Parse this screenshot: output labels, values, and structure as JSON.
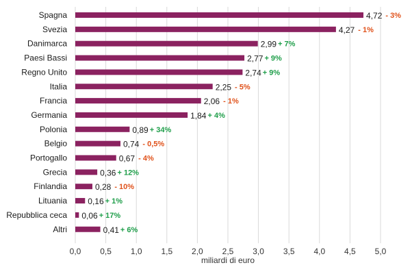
{
  "chart_data": {
    "type": "bar",
    "orientation": "horizontal",
    "xlabel": "miliardi di euro",
    "xlim": [
      0,
      5.0
    ],
    "xticks": [
      0,
      0.5,
      1.0,
      1.5,
      2.0,
      2.5,
      3.0,
      3.5,
      4.0,
      4.5,
      5.0
    ],
    "xtick_labels": [
      "0,0",
      "0,5",
      "1,0",
      "1,5",
      "2,0",
      "2,5",
      "3,0",
      "3,5",
      "4,0",
      "4,5",
      "5,0"
    ],
    "grid": "vertical",
    "legend": "none",
    "bar_color": "#8b2260",
    "positive_color": "#1f9e4a",
    "negative_color": "#e0521b",
    "categories": [
      "Spagna",
      "Svezia",
      "Danimarca",
      "Paesi Bassi",
      "Regno Unito",
      "Italia",
      "Francia",
      "Germania",
      "Polonia",
      "Belgio",
      "Portogallo",
      "Grecia",
      "Finlandia",
      "Lituania",
      "Repubblica ceca",
      "Altri"
    ],
    "values": [
      4.72,
      4.27,
      2.99,
      2.77,
      2.74,
      2.25,
      2.06,
      1.84,
      0.89,
      0.74,
      0.67,
      0.36,
      0.28,
      0.16,
      0.06,
      0.41
    ],
    "value_labels": [
      "4,72",
      "4,27",
      "2,99",
      "2,77",
      "2,74",
      "2,25",
      "2,06",
      "1,84",
      "0,89",
      "0,74",
      "0,67",
      "0,36",
      "0,28",
      "0,16",
      "0,06",
      "0,41"
    ],
    "change_labels": [
      "- 3%",
      "- 1%",
      "+ 7%",
      "+ 9%",
      "+ 9%",
      "- 5%",
      "- 1%",
      "+ 4%",
      "+ 34%",
      "- 0,5%",
      "- 4%",
      "+ 12%",
      "- 10%",
      "+ 1%",
      "+ 17%",
      "+ 6%"
    ],
    "change_values": [
      -3,
      -1,
      7,
      9,
      9,
      -5,
      -1,
      4,
      34,
      -0.5,
      -4,
      12,
      -10,
      1,
      17,
      6
    ]
  }
}
